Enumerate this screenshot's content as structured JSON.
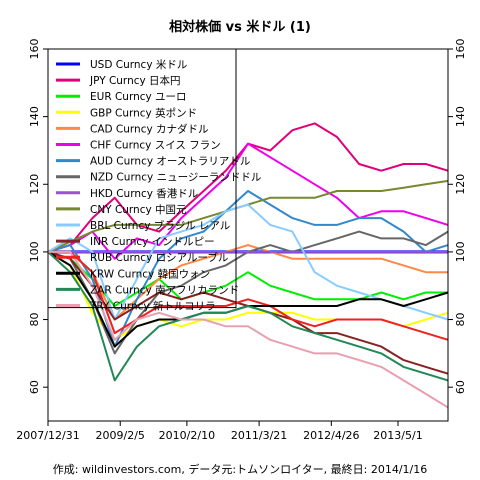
{
  "chart_data": {
    "type": "line",
    "title": "相対株価 vs 米ドル (1)",
    "footer": "作成: wildinvestors.com, データ元:トムソンロイター, 最終日: 2014/1/16",
    "xlabel": "",
    "ylabel": "",
    "xlim": [
      0,
      72
    ],
    "ylim": [
      50,
      160
    ],
    "x_ticks": [
      {
        "x": 0,
        "label": "2007/12/31"
      },
      {
        "x": 13,
        "label": "2009/2/5"
      },
      {
        "x": 25,
        "label": "2010/2/10"
      },
      {
        "x": 38,
        "label": "2011/3/21"
      },
      {
        "x": 51,
        "label": "2012/4/26"
      },
      {
        "x": 63,
        "label": "2013/5/1"
      }
    ],
    "y_ticks": [
      60,
      80,
      100,
      120,
      140,
      160
    ],
    "legend_position": "top-left",
    "x": [
      0,
      4,
      8,
      12,
      16,
      20,
      24,
      28,
      32,
      36,
      40,
      44,
      48,
      52,
      56,
      60,
      64,
      68,
      72
    ],
    "series": [
      {
        "name": "USD Curncy 米ドル",
        "color": "#0000ff",
        "values": [
          100,
          100,
          100,
          100,
          100,
          100,
          100,
          100,
          100,
          100,
          100,
          100,
          100,
          100,
          100,
          100,
          100,
          100,
          100
        ]
      },
      {
        "name": "JPY Curncy 日本円",
        "color": "#e0007a",
        "values": [
          100,
          102,
          110,
          116,
          108,
          106,
          112,
          118,
          124,
          132,
          130,
          136,
          138,
          134,
          126,
          124,
          126,
          126,
          124
        ]
      },
      {
        "name": "EUR Curncy ユーロ",
        "color": "#00ee00",
        "values": [
          100,
          98,
          92,
          84,
          88,
          92,
          86,
          88,
          90,
          94,
          90,
          88,
          86,
          86,
          86,
          88,
          86,
          88,
          88
        ]
      },
      {
        "name": "GBP Curncy 英ポンド",
        "color": "#ffff00",
        "values": [
          100,
          96,
          82,
          74,
          78,
          80,
          78,
          80,
          80,
          82,
          82,
          82,
          80,
          80,
          80,
          80,
          78,
          80,
          82
        ]
      },
      {
        "name": "CAD Curncy カナダドル",
        "color": "#ff8844",
        "values": [
          100,
          100,
          94,
          80,
          86,
          92,
          96,
          98,
          100,
          102,
          100,
          98,
          98,
          98,
          98,
          98,
          96,
          94,
          94
        ]
      },
      {
        "name": "CHF Curncy スイス フラン",
        "color": "#ee00ee",
        "values": [
          100,
          102,
          106,
          98,
          104,
          102,
          110,
          116,
          122,
          132,
          128,
          124,
          120,
          116,
          110,
          112,
          112,
          110,
          108
        ]
      },
      {
        "name": "AUD Curncy オーストラリアドル",
        "color": "#3388cc",
        "values": [
          100,
          102,
          92,
          72,
          86,
          98,
          104,
          106,
          112,
          118,
          114,
          110,
          108,
          108,
          110,
          110,
          106,
          100,
          102
        ]
      },
      {
        "name": "NZD Curncy ニュージーランドドル",
        "color": "#666666",
        "values": [
          100,
          98,
          86,
          70,
          80,
          88,
          90,
          94,
          96,
          100,
          102,
          100,
          102,
          104,
          106,
          104,
          104,
          102,
          106
        ]
      },
      {
        "name": "HKD Curncy 香港ドル",
        "color": "#9955cc",
        "values": [
          100,
          100,
          100,
          100,
          100,
          100,
          100,
          100,
          100,
          100,
          100,
          100,
          100,
          100,
          100,
          100,
          100,
          100,
          100
        ]
      },
      {
        "name": "CNY Curncy 中国元",
        "color": "#778833",
        "values": [
          100,
          103,
          106,
          108,
          108,
          108,
          108,
          110,
          112,
          114,
          116,
          116,
          116,
          118,
          118,
          118,
          119,
          120,
          121
        ]
      },
      {
        "name": "BRL Curncy ブラジル レアル",
        "color": "#88ccff",
        "values": [
          100,
          104,
          100,
          80,
          92,
          104,
          106,
          108,
          112,
          114,
          108,
          106,
          94,
          90,
          88,
          86,
          84,
          82,
          80
        ]
      },
      {
        "name": "INR Curncy インドルピー",
        "color": "#882222",
        "values": [
          100,
          98,
          90,
          80,
          84,
          88,
          86,
          88,
          86,
          84,
          82,
          80,
          76,
          76,
          74,
          72,
          68,
          66,
          64
        ]
      },
      {
        "name": "RUB Curncy ロシアルーブル",
        "color": "#ee2222",
        "values": [
          100,
          100,
          94,
          76,
          80,
          84,
          84,
          84,
          84,
          86,
          84,
          80,
          78,
          80,
          80,
          80,
          78,
          76,
          74
        ]
      },
      {
        "name": "KRW Curncy 韓国ウォン",
        "color": "#000000",
        "values": [
          100,
          96,
          86,
          72,
          78,
          80,
          80,
          82,
          82,
          84,
          84,
          84,
          84,
          84,
          86,
          86,
          84,
          86,
          88
        ]
      },
      {
        "name": "ZAR Curncy 南アフリカランド",
        "color": "#228855",
        "values": [
          100,
          94,
          84,
          62,
          72,
          78,
          80,
          82,
          82,
          84,
          82,
          78,
          76,
          74,
          72,
          70,
          66,
          64,
          62
        ]
      },
      {
        "name": "TRY Curncy 新トルコリラ",
        "color": "#e8a0b0",
        "values": [
          100,
          100,
          90,
          74,
          80,
          82,
          80,
          80,
          78,
          78,
          74,
          72,
          70,
          70,
          68,
          66,
          62,
          58,
          54
        ]
      }
    ]
  }
}
